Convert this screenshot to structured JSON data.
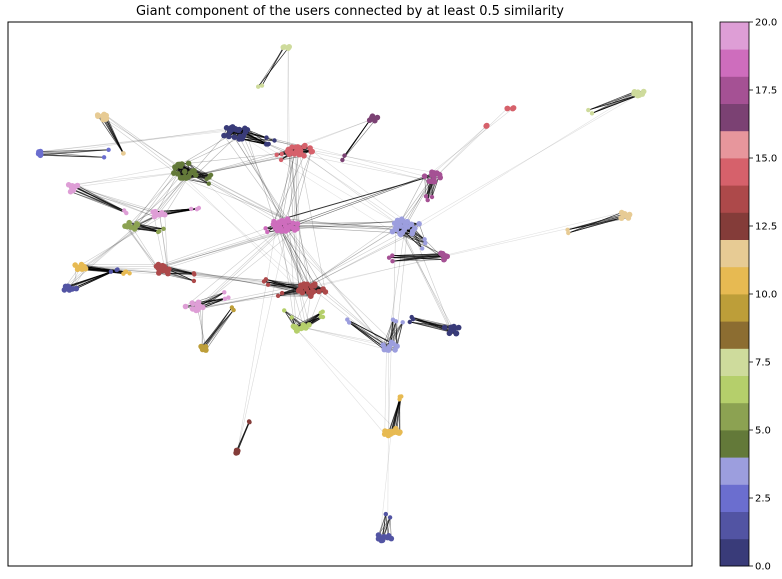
{
  "title": "Giant component of the users connected by at least 0.5 similarity",
  "colorbar": {
    "vmin": 0.0,
    "vmax": 20.0,
    "tick_values": [
      0.0,
      2.5,
      5.0,
      7.5,
      10.0,
      12.5,
      15.0,
      17.5,
      20.0
    ],
    "tick_labels": [
      "0.0",
      "2.5",
      "5.0",
      "7.5",
      "10.0",
      "12.5",
      "15.0",
      "17.5",
      "20.0"
    ],
    "colormap": "tab20b",
    "colors": [
      "#393b79",
      "#5254a3",
      "#6b6ecf",
      "#9c9ede",
      "#637939",
      "#8ca252",
      "#b5cf6b",
      "#cedb9c",
      "#8c6d31",
      "#bd9e39",
      "#e7ba52",
      "#e7cb94",
      "#843c39",
      "#ad494a",
      "#d6616b",
      "#e7969c",
      "#7b4173",
      "#a55194",
      "#ce6dbd",
      "#de9ed6"
    ]
  },
  "chart_data": {
    "type": "network",
    "title": "Giant component of the users connected by at least 0.5 similarity",
    "color_scale_range": [
      0.0,
      20.0
    ],
    "communities": 20,
    "edge_weight_threshold": 0.5,
    "components": "giant component only"
  }
}
